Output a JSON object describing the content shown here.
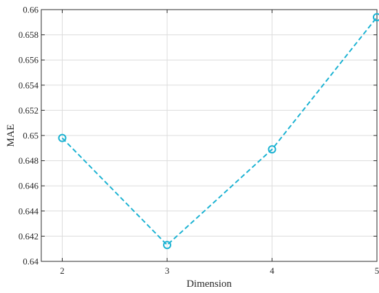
{
  "chart_data": {
    "type": "line",
    "title": "",
    "xlabel": "Dimension",
    "ylabel": "MAE",
    "x": [
      2,
      3,
      4,
      5
    ],
    "xlim": [
      1.8,
      5
    ],
    "ylim": [
      0.64,
      0.66
    ],
    "xticks": [
      "2",
      "3",
      "4",
      "5"
    ],
    "yticks": [
      "0.64",
      "0.642",
      "0.644",
      "0.646",
      "0.648",
      "0.65",
      "0.652",
      "0.654",
      "0.656",
      "0.658",
      "0.66"
    ],
    "grid": true,
    "series": [
      {
        "values": [
          0.6498,
          0.6413,
          0.6489,
          0.6594
        ],
        "color": "#1ab2d2",
        "line_style": "dashed",
        "marker": "circle"
      }
    ]
  }
}
